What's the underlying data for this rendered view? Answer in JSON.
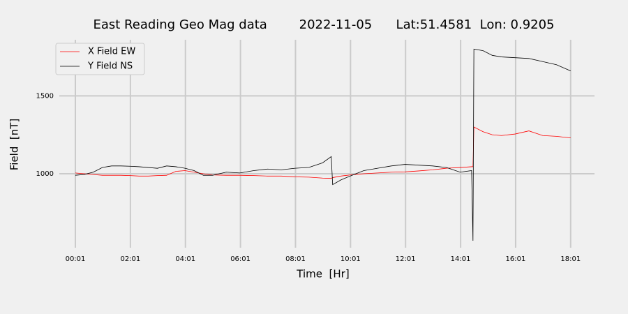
{
  "chart_data": {
    "type": "line",
    "title": "East Reading Geo Mag data        2022-11-05      Lat:51.4581  Lon: 0.9205",
    "x_label": "Time  [Hr]",
    "y_label": "Field  [nT]",
    "x": [
      1,
      20,
      40,
      60,
      80,
      100,
      120,
      140,
      160,
      180,
      200,
      220,
      240,
      260,
      280,
      300,
      330,
      360,
      390,
      420,
      450,
      480,
      510,
      540,
      559,
      562,
      580,
      600,
      630,
      660,
      690,
      720,
      750,
      780,
      810,
      840,
      865,
      868,
      870,
      890,
      910,
      930,
      960,
      990,
      1020,
      1050,
      1081
    ],
    "series": [
      {
        "name": "X Field EW",
        "color": "#ff0000",
        "values": [
          1005,
          1000,
          995,
          990,
          990,
          990,
          988,
          985,
          985,
          988,
          990,
          1015,
          1020,
          1010,
          1000,
          992,
          990,
          990,
          988,
          985,
          985,
          980,
          978,
          972,
          970,
          975,
          985,
          992,
          1000,
          1005,
          1010,
          1012,
          1018,
          1025,
          1035,
          1040,
          1045,
          1045,
          1300,
          1270,
          1250,
          1245,
          1255,
          1275,
          1245,
          1240,
          1230
        ]
      },
      {
        "name": "Y Field NS",
        "color": "#000000",
        "values": [
          990,
          995,
          1010,
          1040,
          1050,
          1050,
          1048,
          1045,
          1040,
          1035,
          1050,
          1045,
          1035,
          1020,
          990,
          990,
          1010,
          1005,
          1020,
          1030,
          1025,
          1035,
          1040,
          1070,
          1110,
          930,
          960,
          985,
          1020,
          1035,
          1050,
          1060,
          1055,
          1050,
          1040,
          1010,
          1020,
          570,
          1800,
          1790,
          1760,
          1750,
          1745,
          1740,
          1720,
          1700,
          1660
        ]
      }
    ],
    "xlim": [
      -34,
      1133
    ],
    "xticks": [
      {
        "value": 1,
        "label": "00:01"
      },
      {
        "value": 121,
        "label": "02:01"
      },
      {
        "value": 241,
        "label": "04:01"
      },
      {
        "value": 361,
        "label": "06:01"
      },
      {
        "value": 481,
        "label": "08:01"
      },
      {
        "value": 601,
        "label": "10:01"
      },
      {
        "value": 721,
        "label": "12:01"
      },
      {
        "value": 841,
        "label": "14:01"
      },
      {
        "value": 961,
        "label": "16:01"
      },
      {
        "value": 1081,
        "label": "18:01"
      }
    ],
    "ylim": [
      525,
      1860
    ],
    "yticks": [
      1000,
      1500
    ],
    "grid": true,
    "legend": "upper left"
  }
}
